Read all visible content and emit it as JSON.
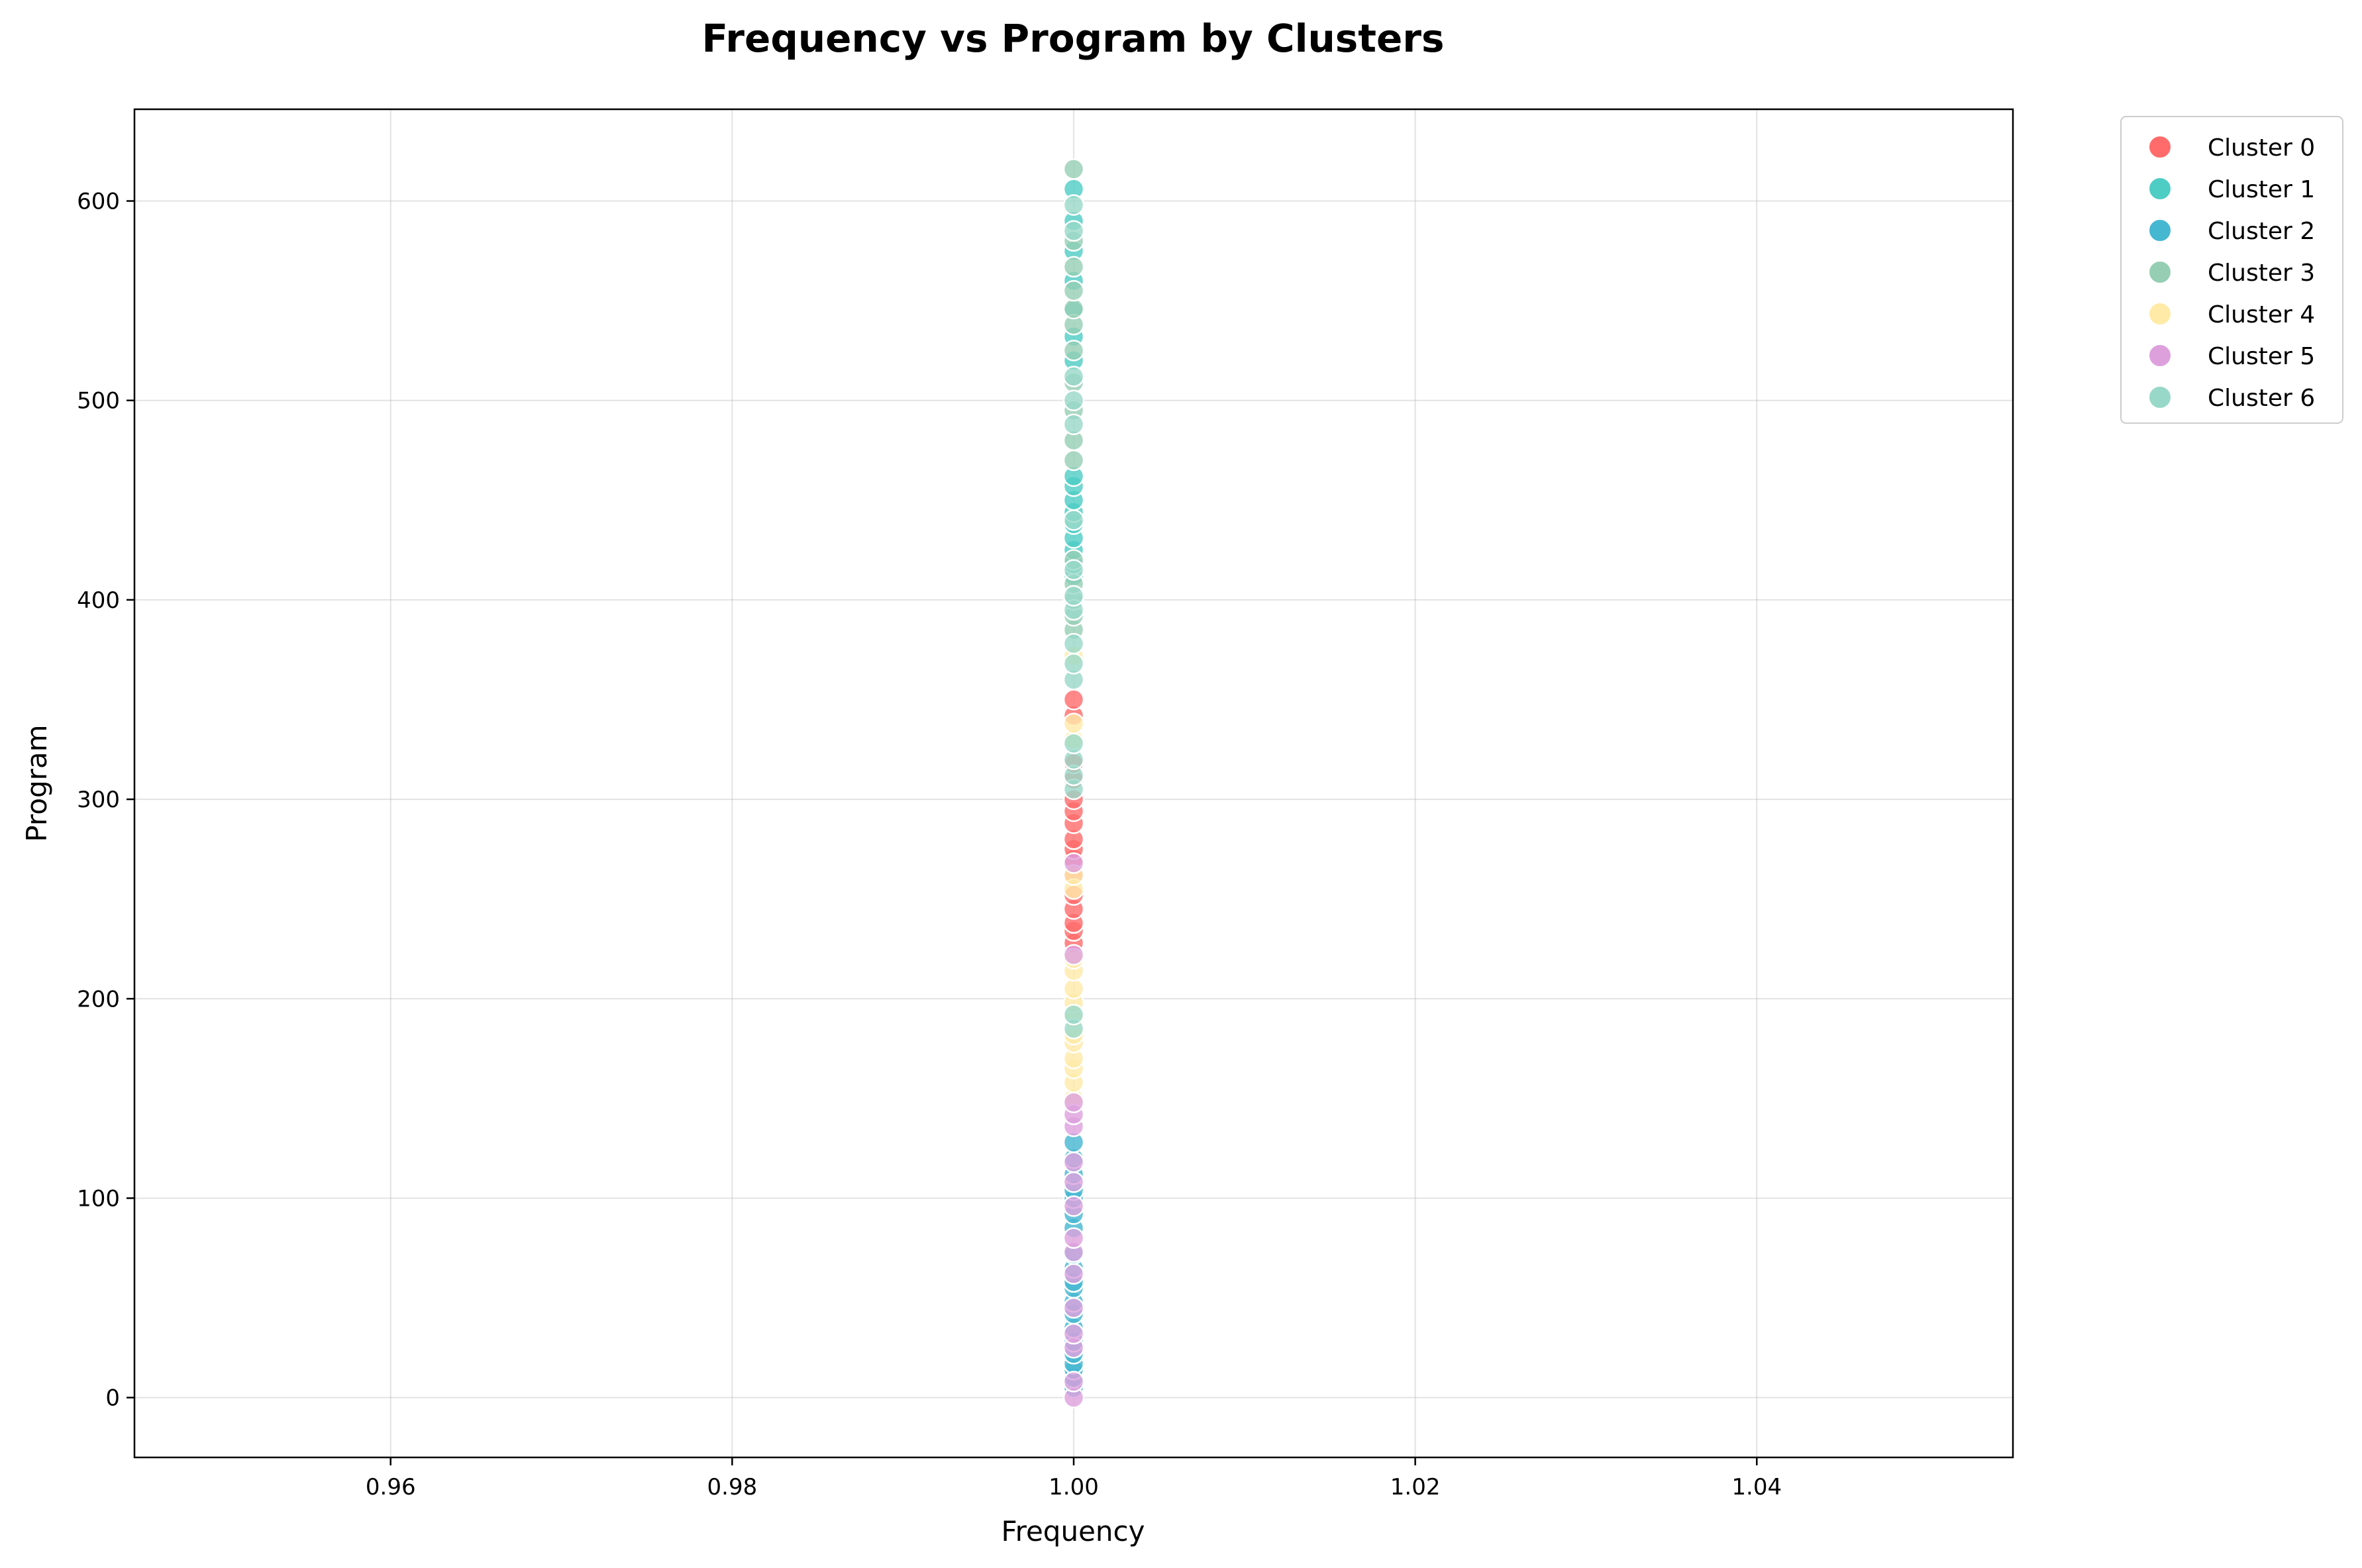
{
  "chart_data": {
    "type": "scatter",
    "title": "Frequency vs Program by Clusters",
    "xlabel": "Frequency",
    "ylabel": "Program",
    "xlim": [
      0.945,
      1.055
    ],
    "ylim": [
      -30,
      646
    ],
    "xticks": [
      0.96,
      0.98,
      1.0,
      1.02,
      1.04
    ],
    "xtick_labels": [
      "0.96",
      "0.98",
      "1.00",
      "1.02",
      "1.04"
    ],
    "yticks": [
      0,
      100,
      200,
      300,
      400,
      500,
      600
    ],
    "ytick_labels": [
      "0",
      "100",
      "200",
      "300",
      "400",
      "500",
      "600"
    ],
    "grid": true,
    "legend_position": "outside-top-right",
    "series": [
      {
        "name": "Cluster 0",
        "color": "#FF6B6B",
        "x": [
          1,
          1,
          1,
          1,
          1,
          1,
          1,
          1,
          1,
          1,
          1,
          1,
          1,
          1,
          1,
          1
        ],
        "y": [
          228,
          234,
          238,
          245,
          252,
          262,
          270,
          275,
          280,
          288,
          294,
          300,
          310,
          318,
          342,
          350
        ]
      },
      {
        "name": "Cluster 1",
        "color": "#4ECDC4",
        "x": [
          1,
          1,
          1,
          1,
          1,
          1,
          1,
          1,
          1,
          1,
          1,
          1,
          1,
          1,
          1,
          1
        ],
        "y": [
          412,
          418,
          425,
          431,
          438,
          444,
          450,
          457,
          462,
          520,
          532,
          545,
          560,
          575,
          590,
          606
        ]
      },
      {
        "name": "Cluster 2",
        "color": "#45B7D1",
        "x": [
          1,
          1,
          1,
          1,
          1,
          1,
          1,
          1,
          1,
          1,
          1,
          1,
          1,
          1,
          1,
          1,
          1,
          1,
          1,
          1
        ],
        "y": [
          5,
          10,
          14,
          17,
          22,
          28,
          35,
          42,
          48,
          55,
          58,
          65,
          72,
          85,
          92,
          100,
          104,
          112,
          120,
          128
        ]
      },
      {
        "name": "Cluster 3",
        "color": "#96CEB4",
        "x": [
          1,
          1,
          1,
          1,
          1,
          1,
          1,
          1,
          1,
          1,
          1,
          1,
          1,
          1,
          1,
          1
        ],
        "y": [
          385,
          392,
          400,
          408,
          420,
          470,
          480,
          495,
          509,
          525,
          538,
          546,
          555,
          567,
          580,
          616
        ]
      },
      {
        "name": "Cluster 4",
        "color": "#FFEAA7",
        "x": [
          1,
          1,
          1,
          1,
          1,
          1,
          1,
          1,
          1,
          1,
          1,
          1,
          1,
          1,
          1,
          1
        ],
        "y": [
          150,
          158,
          165,
          170,
          178,
          182,
          190,
          198,
          205,
          214,
          220,
          255,
          262,
          330,
          338,
          372
        ]
      },
      {
        "name": "Cluster 5",
        "color": "#DDA0DD",
        "x": [
          1,
          1,
          1,
          1,
          1,
          1,
          1,
          1,
          1,
          1,
          1,
          1,
          1,
          1,
          1,
          1
        ],
        "y": [
          0,
          8,
          25,
          32,
          45,
          62,
          73,
          80,
          96,
          108,
          118,
          136,
          142,
          148,
          222,
          268
        ]
      },
      {
        "name": "Cluster 6",
        "color": "#98D8C8",
        "x": [
          1,
          1,
          1,
          1,
          1,
          1,
          1,
          1,
          1,
          1,
          1,
          1,
          1,
          1,
          1,
          1,
          1,
          1
        ],
        "y": [
          185,
          192,
          305,
          312,
          320,
          328,
          360,
          368,
          378,
          395,
          402,
          415,
          440,
          488,
          500,
          512,
          585,
          598
        ]
      }
    ]
  }
}
